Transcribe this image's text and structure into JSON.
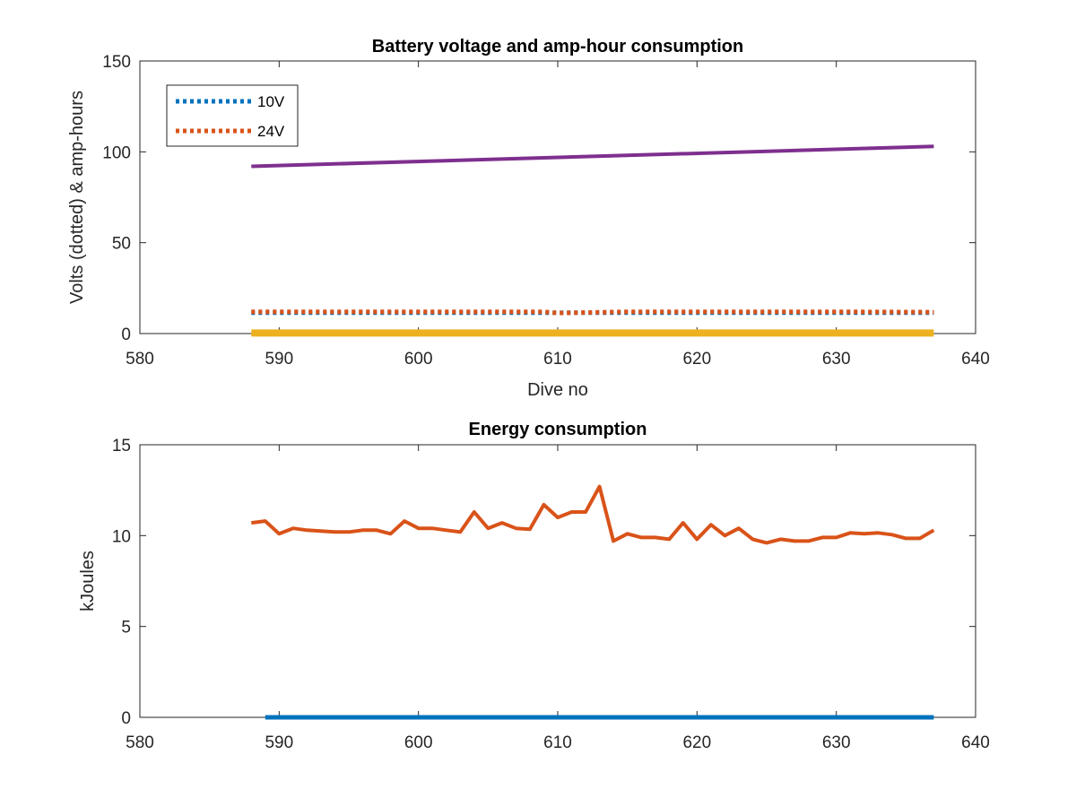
{
  "chart_data": [
    {
      "type": "line",
      "title": "Battery voltage and amp-hour consumption",
      "xlabel": "Dive no",
      "ylabel": "Volts (dotted) & amp-hours",
      "xlim": [
        580,
        640
      ],
      "ylim": [
        0,
        150
      ],
      "xticks": [
        "580",
        "590",
        "600",
        "610",
        "620",
        "630",
        "640"
      ],
      "yticks": [
        "0",
        "50",
        "100",
        "150"
      ],
      "legend": {
        "position": "top-left",
        "entries": [
          "10V",
          "24V"
        ]
      },
      "series": [
        {
          "name": "10V",
          "style": "dotted",
          "color": "#0072BD",
          "x": [
            588,
            600,
            610,
            620,
            630,
            637
          ],
          "y": [
            11.5,
            11.5,
            11.5,
            11.5,
            11.5,
            11.5
          ]
        },
        {
          "name": "24V",
          "style": "dotted",
          "color": "#D95319",
          "x": [
            588,
            595,
            600,
            605,
            609,
            610,
            615,
            620,
            630,
            637
          ],
          "y": [
            12,
            12,
            12,
            12,
            12,
            11.3,
            12,
            12,
            12,
            11.8
          ]
        },
        {
          "style": "solid",
          "color": "#7E2F8E",
          "x": [
            588,
            637
          ],
          "y": [
            92,
            103
          ]
        },
        {
          "style": "solid",
          "color": "#EDB120",
          "x": [
            588,
            637
          ],
          "y": [
            0.3,
            0.3
          ]
        }
      ]
    },
    {
      "type": "line",
      "title": "Energy consumption",
      "xlabel": "",
      "ylabel": "kJoules",
      "xlim": [
        580,
        640
      ],
      "ylim": [
        0,
        15
      ],
      "xticks": [
        "580",
        "590",
        "600",
        "610",
        "620",
        "630",
        "640"
      ],
      "yticks": [
        "0",
        "5",
        "10",
        "15"
      ],
      "series": [
        {
          "style": "solid",
          "color": "#D95319",
          "x": [
            588,
            589,
            590,
            591,
            592,
            593,
            594,
            595,
            596,
            597,
            598,
            599,
            600,
            601,
            602,
            603,
            604,
            605,
            606,
            607,
            608,
            609,
            610,
            611,
            612,
            613,
            614,
            615,
            616,
            617,
            618,
            619,
            620,
            621,
            622,
            623,
            624,
            625,
            626,
            627,
            628,
            629,
            630,
            631,
            632,
            633,
            634,
            635,
            636,
            637
          ],
          "y": [
            10.7,
            10.8,
            10.1,
            10.4,
            10.3,
            10.25,
            10.2,
            10.2,
            10.3,
            10.3,
            10.1,
            10.8,
            10.4,
            10.4,
            10.3,
            10.2,
            11.3,
            10.4,
            10.7,
            10.4,
            10.35,
            11.7,
            11.0,
            11.3,
            11.3,
            12.7,
            9.7,
            10.1,
            9.9,
            9.9,
            9.8,
            10.7,
            9.8,
            10.6,
            10.0,
            10.4,
            9.8,
            9.6,
            9.8,
            9.7,
            9.7,
            9.9,
            9.9,
            10.15,
            10.1,
            10.15,
            10.05,
            9.85,
            9.85,
            10.3
          ]
        },
        {
          "style": "solid",
          "color": "#0072BD",
          "x": [
            589,
            637
          ],
          "y": [
            0,
            0
          ]
        }
      ]
    }
  ]
}
